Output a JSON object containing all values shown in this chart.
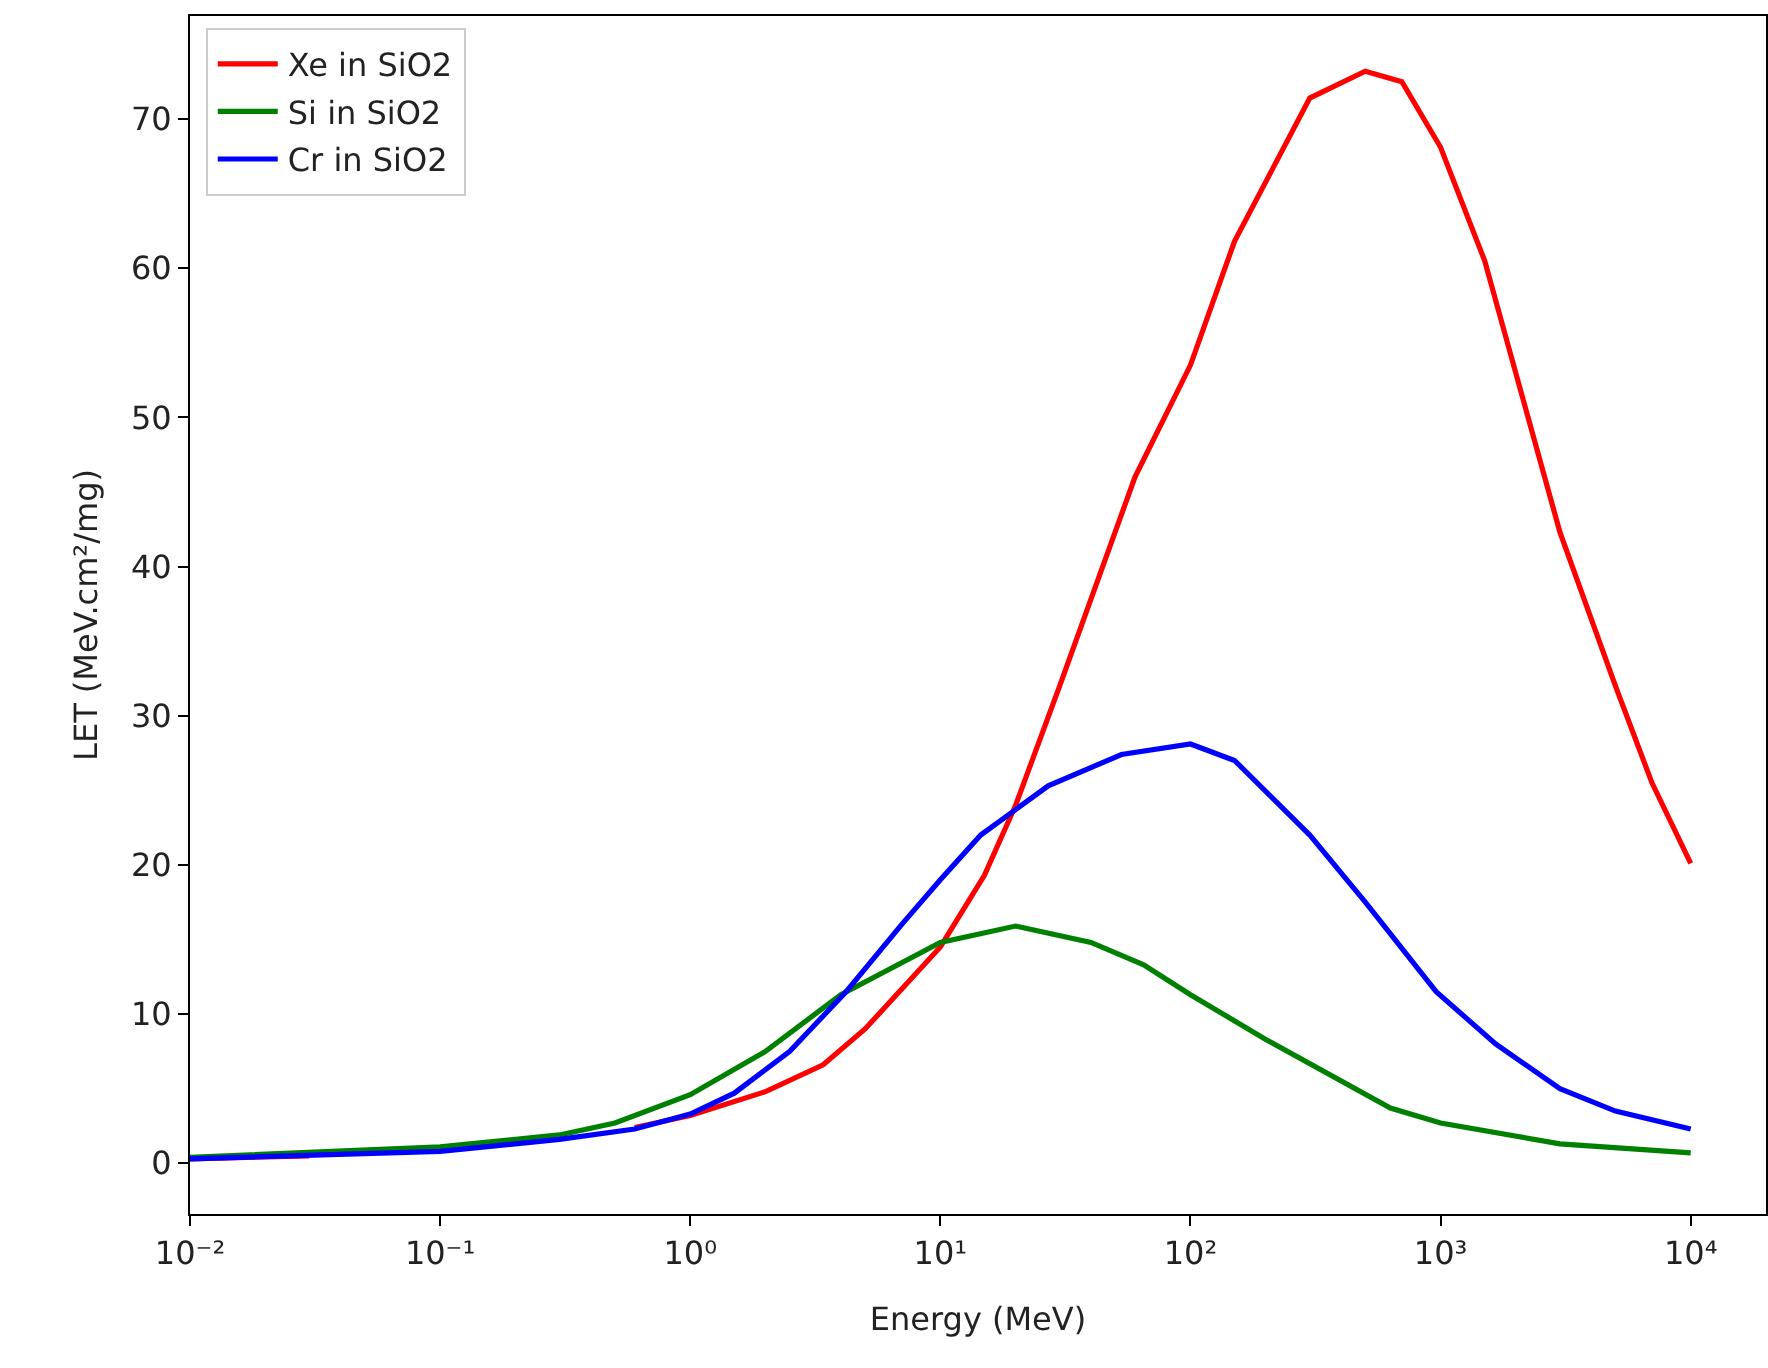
{
  "chart_data": {
    "type": "line",
    "xlabel": "Energy (MeV)",
    "ylabel": "LET (MeV.cm²/mg)",
    "log": "x",
    "grid": false,
    "legend": "top left",
    "marker": "none",
    "line_style": "solid",
    "xlim": [
      0.01,
      20000
    ],
    "ylim": [
      -3.4,
      76.9
    ],
    "xticks": [
      {
        "value": 0.01,
        "label": "10⁻²"
      },
      {
        "value": 0.1,
        "label": "10⁻¹"
      },
      {
        "value": 1,
        "label": "10⁰"
      },
      {
        "value": 10,
        "label": "10¹"
      },
      {
        "value": 100,
        "label": "10²"
      },
      {
        "value": 1000,
        "label": "10³"
      },
      {
        "value": 10000,
        "label": "10⁴"
      }
    ],
    "yticks": [
      0,
      10,
      20,
      30,
      40,
      50,
      60,
      70
    ],
    "series": [
      {
        "name": "Xe in SiO2",
        "color": "#ff0000",
        "x": [
          0.01,
          0.03,
          0.1,
          0.3,
          0.6,
          1,
          2,
          3.4,
          5,
          10,
          15,
          20,
          30,
          60,
          100,
          150,
          300,
          500,
          700,
          1000,
          1500,
          3000,
          5000,
          7000,
          10000
        ],
        "values": [
          0.3,
          0.5,
          null,
          null,
          2.4,
          3.2,
          4.8,
          6.6,
          9,
          14.5,
          19.3,
          24,
          32,
          46,
          53.5,
          61.8,
          71.4,
          73.2,
          72.5,
          68.1,
          60.5,
          42.3,
          32,
          25.5,
          20.1
        ]
      },
      {
        "name": "Si in SiO2",
        "color": "#008000",
        "x": [
          0.01,
          0.1,
          0.3,
          0.5,
          1,
          2,
          4,
          10,
          20,
          40,
          65,
          100,
          200,
          630,
          1000,
          3000,
          10000
        ],
        "values": [
          0.4,
          1.1,
          1.9,
          2.7,
          4.6,
          7.5,
          11.3,
          14.8,
          15.9,
          14.8,
          13.3,
          11.3,
          8.3,
          3.7,
          2.7,
          1.3,
          0.7
        ]
      },
      {
        "name": "Cr in SiO2",
        "color": "#0000ff",
        "x": [
          0.01,
          0.1,
          0.3,
          0.6,
          1,
          1.5,
          2.5,
          4.2,
          7,
          10,
          14.5,
          27,
          53,
          100,
          150,
          300,
          500,
          960,
          1660,
          3000,
          5000,
          10000
        ],
        "values": [
          0.3,
          0.8,
          1.6,
          2.3,
          3.3,
          4.7,
          7.5,
          11.5,
          16,
          19,
          22,
          25.3,
          27.4,
          28.1,
          27,
          22,
          17.5,
          11.5,
          8,
          5,
          3.5,
          2.3
        ]
      }
    ]
  }
}
